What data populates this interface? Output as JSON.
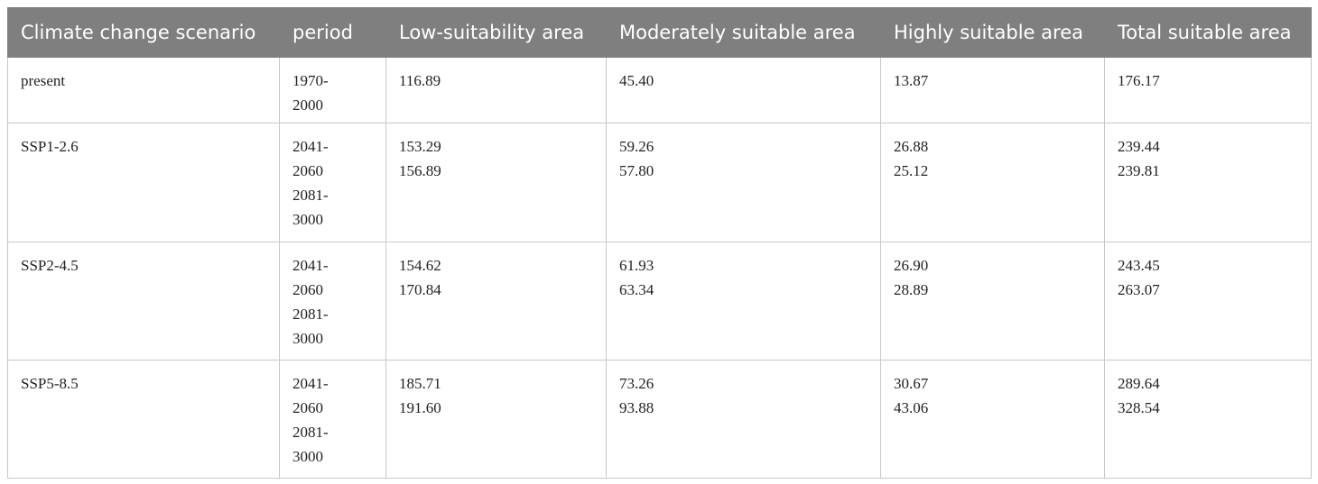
{
  "table": {
    "header": [
      "Climate change scenario",
      "period",
      "Low-suitability area",
      "Moderately suitable area",
      "Highly suitable area",
      "Total suitable area"
    ],
    "rows": [
      [
        [
          "present"
        ],
        [
          "1970-2000"
        ],
        [
          "116.89"
        ],
        [
          "45.40"
        ],
        [
          "13.87"
        ],
        [
          "176.17"
        ]
      ],
      [
        [
          "SSP1-2.6"
        ],
        [
          "2041-2060",
          "2081-3000"
        ],
        [
          "153.29",
          "156.89"
        ],
        [
          "59.26",
          "57.80"
        ],
        [
          "26.88",
          "25.12"
        ],
        [
          "239.44",
          "239.81"
        ]
      ],
      [
        [
          "SSP2-4.5"
        ],
        [
          "2041-2060",
          "2081-3000"
        ],
        [
          "154.62",
          "170.84"
        ],
        [
          "61.93",
          "63.34"
        ],
        [
          "26.90",
          "28.89"
        ],
        [
          "243.45",
          "263.07"
        ]
      ],
      [
        [
          "SSP5-8.5"
        ],
        [
          "2041-2060",
          "2081-3000"
        ],
        [
          "185.71",
          "191.60"
        ],
        [
          "73.26",
          "93.88"
        ],
        [
          "30.67",
          "43.06"
        ],
        [
          "289.64",
          "328.54"
        ]
      ]
    ]
  }
}
